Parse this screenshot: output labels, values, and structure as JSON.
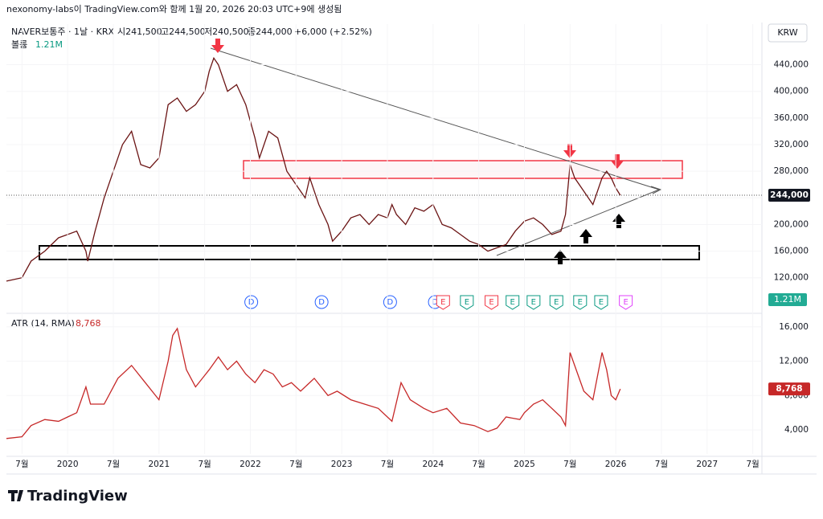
{
  "header": {
    "caption": "nexonomy-labs이 TradingView.com와 함께 1월 20, 2026 20:03 UTC+9에 생성됨",
    "symbol": "NAVER보통주 · 1날 · KRX",
    "open": "시241,500",
    "high": "고244,500",
    "low": "저240,500",
    "close": "종244,000",
    "change": "+6,000 (+2.52%)",
    "volume_label": "볼륨",
    "volume": "1.21M",
    "currency": "KRW",
    "logo": "TradingView"
  },
  "chart_data": [
    {
      "type": "line",
      "name": "price",
      "color": "#6b1414",
      "xlim": [
        2019.33,
        2027.6
      ],
      "ylim": [
        69000,
        501000
      ],
      "yticks": [
        {
          "value": 120000,
          "label": "120,000"
        },
        {
          "value": 160000,
          "label": "160,000"
        },
        {
          "value": 200000,
          "label": "200,000"
        },
        {
          "value": 240000,
          "label": "240,000"
        },
        {
          "value": 280000,
          "label": "280,000"
        },
        {
          "value": 320000,
          "label": "320,000"
        },
        {
          "value": 360000,
          "label": "360,000"
        },
        {
          "value": 400000,
          "label": "400,000"
        },
        {
          "value": 440000,
          "label": "440,000"
        }
      ],
      "last_value": {
        "value": 244000,
        "label": "244,000"
      },
      "x": [
        2019.33,
        2019.5,
        2019.6,
        2019.75,
        2019.9,
        2020.0,
        2020.1,
        2020.2,
        2020.22,
        2020.3,
        2020.4,
        2020.5,
        2020.6,
        2020.7,
        2020.8,
        2020.9,
        2021.0,
        2021.1,
        2021.2,
        2021.3,
        2021.4,
        2021.5,
        2021.55,
        2021.6,
        2021.65,
        2021.75,
        2021.85,
        2021.95,
        2022.05,
        2022.1,
        2022.2,
        2022.3,
        2022.4,
        2022.5,
        2022.6,
        2022.65,
        2022.75,
        2022.85,
        2022.9,
        2023.0,
        2023.1,
        2023.2,
        2023.3,
        2023.4,
        2023.5,
        2023.55,
        2023.6,
        2023.7,
        2023.8,
        2023.9,
        2024.0,
        2024.1,
        2024.2,
        2024.3,
        2024.4,
        2024.5,
        2024.6,
        2024.7,
        2024.8,
        2024.9,
        2025.0,
        2025.1,
        2025.2,
        2025.3,
        2025.4,
        2025.45,
        2025.5,
        2025.55,
        2025.65,
        2025.75,
        2025.85,
        2025.9,
        2025.95,
        2026.0,
        2026.05
      ],
      "values": [
        115000,
        120000,
        145000,
        160000,
        180000,
        185000,
        190000,
        160000,
        145000,
        190000,
        240000,
        280000,
        320000,
        340000,
        290000,
        285000,
        300000,
        380000,
        390000,
        370000,
        380000,
        400000,
        430000,
        450000,
        440000,
        400000,
        410000,
        380000,
        330000,
        300000,
        340000,
        330000,
        280000,
        260000,
        240000,
        270000,
        230000,
        200000,
        175000,
        190000,
        210000,
        215000,
        200000,
        215000,
        210000,
        230000,
        215000,
        200000,
        225000,
        220000,
        230000,
        200000,
        195000,
        185000,
        175000,
        170000,
        160000,
        165000,
        170000,
        190000,
        205000,
        210000,
        200000,
        185000,
        190000,
        215000,
        290000,
        270000,
        250000,
        230000,
        270000,
        280000,
        270000,
        255000,
        244000
      ],
      "events": [
        {
          "x": 2022.01,
          "label": "D",
          "color": "#2962ff"
        },
        {
          "x": 2022.78,
          "label": "D",
          "color": "#2962ff"
        },
        {
          "x": 2023.53,
          "label": "D",
          "color": "#2962ff"
        },
        {
          "x": 2024.02,
          "label": "D",
          "color": "#2962ff"
        },
        {
          "x": 2024.11,
          "label": "E",
          "color": "#f23645"
        },
        {
          "x": 2024.37,
          "label": "E",
          "color": "#089981"
        },
        {
          "x": 2024.64,
          "label": "E",
          "color": "#f23645"
        },
        {
          "x": 2024.87,
          "label": "E",
          "color": "#089981"
        },
        {
          "x": 2025.1,
          "label": "E",
          "color": "#089981"
        },
        {
          "x": 2025.35,
          "label": "E",
          "color": "#089981"
        },
        {
          "x": 2025.61,
          "label": "E",
          "color": "#089981"
        },
        {
          "x": 2025.84,
          "label": "E",
          "color": "#089981"
        },
        {
          "x": 2026.11,
          "label": "E",
          "color": "#e040fb"
        }
      ]
    },
    {
      "type": "line",
      "name": "atr",
      "title": "ATR (14, RMA)",
      "color": "#c62828",
      "xlim": [
        2019.33,
        2027.6
      ],
      "ylim": [
        1200,
        17100
      ],
      "yticks": [
        {
          "value": 4000,
          "label": "4,000"
        },
        {
          "value": 8000,
          "label": "8,000"
        },
        {
          "value": 12000,
          "label": "12,000"
        },
        {
          "value": 16000,
          "label": "16,000"
        }
      ],
      "last_value": {
        "value": 8768,
        "label": "8,768"
      },
      "xticks": [
        {
          "value": 2019.5,
          "label": "7월"
        },
        2020,
        {
          "value": 2020.5,
          "label": "7월"
        },
        2021,
        {
          "value": 2021.5,
          "label": "7월"
        },
        2022,
        {
          "value": 2022.5,
          "label": "7월"
        },
        2023,
        {
          "value": 2023.5,
          "label": "7월"
        },
        2024,
        {
          "value": 2024.5,
          "label": "7월"
        },
        2025,
        {
          "value": 2025.5,
          "label": "7월"
        },
        2026,
        {
          "value": 2026.5,
          "label": "7월"
        },
        2027,
        {
          "value": 2027.5,
          "label": "7월"
        }
      ],
      "x": [
        2019.33,
        2019.5,
        2019.6,
        2019.75,
        2019.9,
        2020.0,
        2020.1,
        2020.2,
        2020.25,
        2020.4,
        2020.55,
        2020.7,
        2020.85,
        2021.0,
        2021.1,
        2021.15,
        2021.2,
        2021.3,
        2021.4,
        2021.55,
        2021.65,
        2021.75,
        2021.85,
        2021.95,
        2022.05,
        2022.15,
        2022.25,
        2022.35,
        2022.45,
        2022.55,
        2022.7,
        2022.85,
        2022.95,
        2023.1,
        2023.25,
        2023.4,
        2023.55,
        2023.65,
        2023.75,
        2023.9,
        2024.0,
        2024.15,
        2024.3,
        2024.45,
        2024.6,
        2024.7,
        2024.8,
        2024.95,
        2025.0,
        2025.1,
        2025.2,
        2025.3,
        2025.4,
        2025.45,
        2025.5,
        2025.55,
        2025.65,
        2025.75,
        2025.85,
        2025.9,
        2025.95,
        2026.0,
        2026.05
      ],
      "values": [
        3000,
        3200,
        4500,
        5200,
        5000,
        5500,
        6000,
        9000,
        7000,
        7000,
        10000,
        11500,
        9500,
        7500,
        12000,
        15000,
        15800,
        11000,
        9000,
        11000,
        12500,
        11000,
        12000,
        10500,
        9500,
        11000,
        10500,
        9000,
        9500,
        8500,
        10000,
        8000,
        8500,
        7500,
        7000,
        6500,
        5000,
        9500,
        7500,
        6500,
        6000,
        6500,
        4800,
        4500,
        3800,
        4200,
        5500,
        5200,
        6000,
        7000,
        7500,
        6500,
        5500,
        4500,
        13000,
        11500,
        8500,
        7500,
        13000,
        11000,
        8000,
        7500,
        8768
      ]
    }
  ]
}
